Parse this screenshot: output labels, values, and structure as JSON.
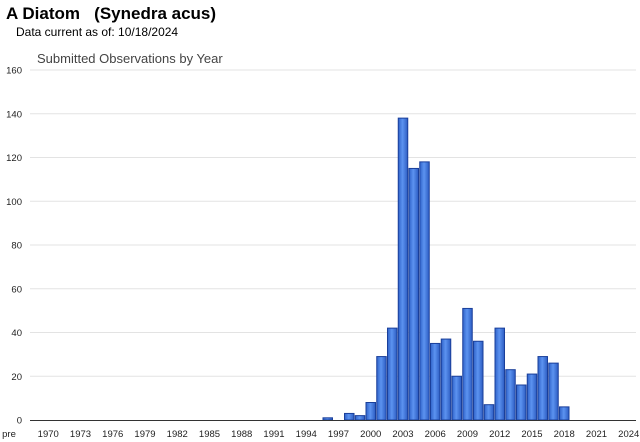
{
  "header": {
    "title": "A Diatom   (Synedra acus)",
    "subtitle": "Data current as of: 10/18/2024"
  },
  "chart_data": {
    "type": "bar",
    "title": "Submitted Observations by Year",
    "xlabel": "",
    "ylabel": "",
    "ylim": [
      0,
      160
    ],
    "yticks": [
      0,
      20,
      40,
      60,
      80,
      100,
      120,
      140,
      160
    ],
    "grid": true,
    "categories": [
      "pre",
      "1970",
      "1971",
      "1972",
      "1973",
      "1974",
      "1975",
      "1976",
      "1977",
      "1978",
      "1979",
      "1980",
      "1981",
      "1982",
      "1983",
      "1984",
      "1985",
      "1986",
      "1987",
      "1988",
      "1989",
      "1990",
      "1991",
      "1992",
      "1993",
      "1994",
      "1995",
      "1996",
      "1997",
      "1998",
      "1999",
      "2000",
      "2001",
      "2002",
      "2003",
      "2004",
      "2005",
      "2006",
      "2007",
      "2008",
      "2009",
      "2010",
      "2011",
      "2012",
      "2013",
      "2014",
      "2015",
      "2016",
      "2017",
      "2018",
      "2019",
      "2020",
      "2021",
      "2022",
      "2023",
      "2024"
    ],
    "tick_labels": [
      "pre",
      "1970",
      "1973",
      "1976",
      "1979",
      "1982",
      "1985",
      "1988",
      "1991",
      "1994",
      "1997",
      "2000",
      "2003",
      "2006",
      "2009",
      "2012",
      "2015",
      "2018",
      "2021",
      "2024"
    ],
    "values": [
      0,
      0,
      0,
      0,
      0,
      0,
      0,
      0,
      0,
      0,
      0,
      0,
      0,
      0,
      0,
      0,
      0,
      0,
      0,
      0,
      0,
      0,
      0,
      0,
      0,
      0,
      0,
      1,
      0,
      3,
      2,
      8,
      29,
      42,
      138,
      115,
      118,
      35,
      37,
      20,
      51,
      36,
      7,
      42,
      23,
      16,
      21,
      29,
      26,
      6,
      0,
      0,
      0,
      0,
      0,
      0
    ],
    "colors": {
      "bar_fill": "#3d7be8",
      "bar_stroke": "#1a3f9a",
      "grid": "#e3e3e3",
      "axis": "#333333",
      "title": "#444444"
    }
  }
}
